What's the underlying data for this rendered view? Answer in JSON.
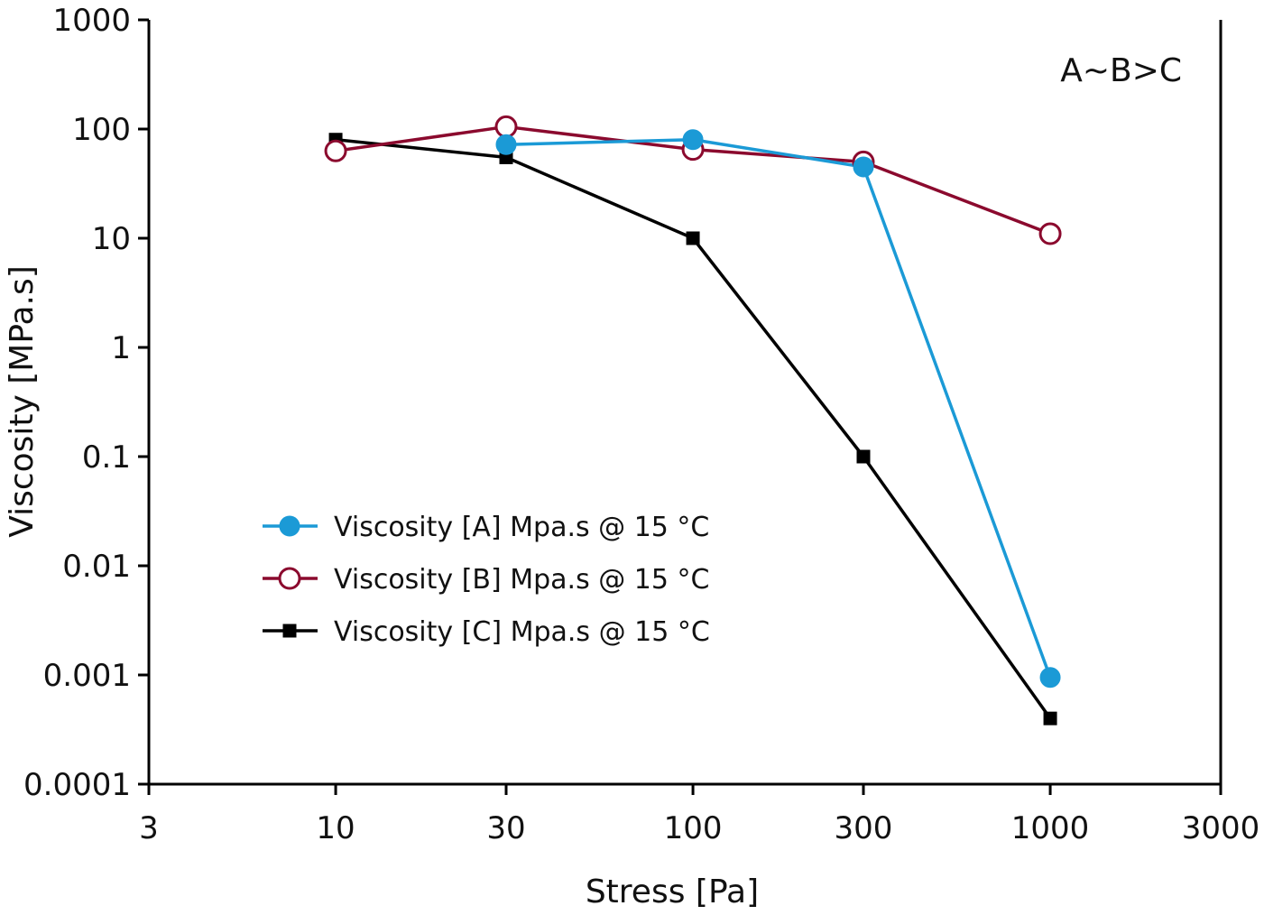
{
  "chart_data": {
    "type": "line",
    "xlabel": "Stress [Pa]",
    "ylabel": "Viscosity [MPa.s]",
    "x_scale": "log",
    "y_scale": "log",
    "xlim": [
      3,
      3000
    ],
    "ylim": [
      0.0001,
      1000
    ],
    "x_ticks": [
      3,
      10,
      30,
      100,
      300,
      1000,
      3000
    ],
    "x_tick_labels": [
      "3",
      "10",
      "30",
      "100",
      "300",
      "1000",
      "3000"
    ],
    "y_ticks": [
      0.0001,
      0.001,
      0.01,
      0.1,
      1,
      10,
      100,
      1000
    ],
    "y_tick_labels": [
      "0.0001",
      "0.001",
      "0.01",
      "0.1",
      "1",
      "10",
      "100",
      "1000"
    ],
    "grid": false,
    "legend_position": "center-left",
    "annotation": "A~B>C",
    "series": [
      {
        "name": "Viscosity [A] Mpa.s @ 15 °C",
        "color": "#1b9ad6",
        "marker": "filled-circle",
        "x": [
          30,
          100,
          300,
          1000
        ],
        "y": [
          72,
          80,
          45,
          0.00095
        ]
      },
      {
        "name": "Viscosity [B] Mpa.s @ 15 °C",
        "color": "#8b0a2e",
        "marker": "open-circle",
        "x": [
          10,
          30,
          100,
          300,
          1000
        ],
        "y": [
          63,
          105,
          65,
          50,
          11
        ]
      },
      {
        "name": "Viscosity [C] Mpa.s @ 15 °C",
        "color": "#000000",
        "marker": "filled-square",
        "x": [
          10,
          30,
          100,
          300,
          1000
        ],
        "y": [
          80,
          55,
          10,
          0.1,
          0.0004
        ]
      }
    ]
  }
}
